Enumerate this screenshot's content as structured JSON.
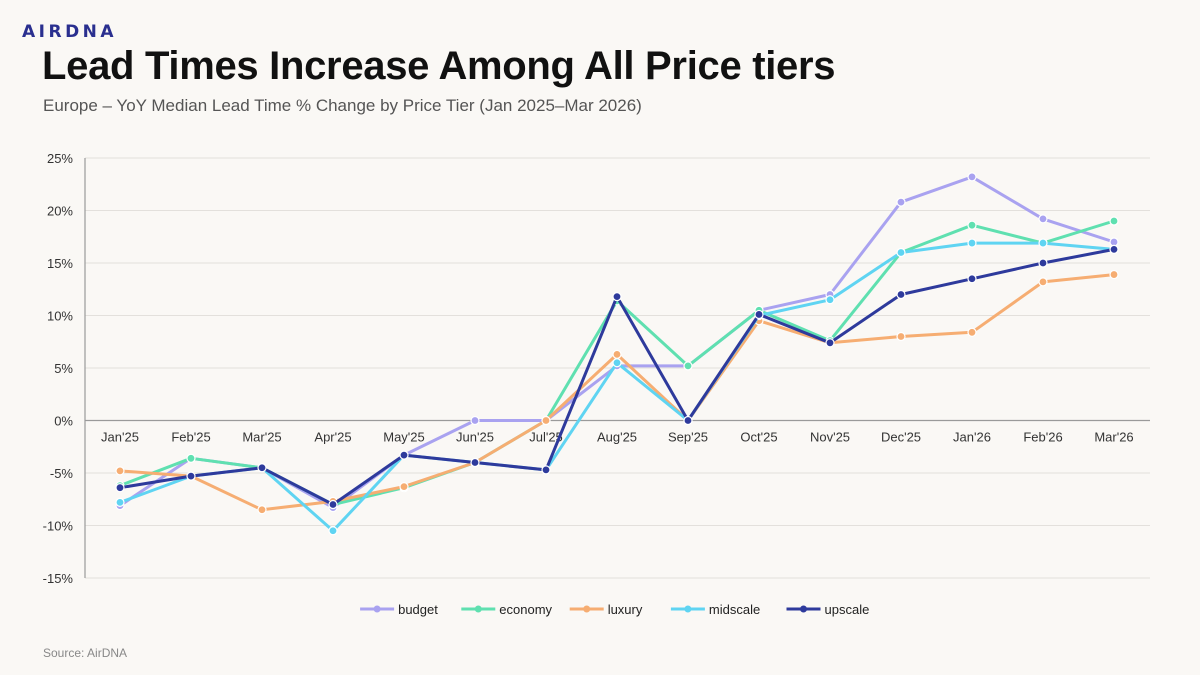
{
  "brand": {
    "logo_text": "AIRDNA",
    "color": "#2a2f8f"
  },
  "header": {
    "title": "Lead Times Increase Among All Price tiers",
    "subtitle": "Europe – YoY Median Lead Time % Change by Price Tier (Jan 2025–Mar 2026)"
  },
  "footer": {
    "source": "Source: AirDNA"
  },
  "chart_data": {
    "type": "line",
    "title": "Lead Times Increase Among All Price tiers",
    "subtitle": "Europe – YoY Median Lead Time % Change by Price Tier (Jan 2025–Mar 2026)",
    "xlabel": "",
    "ylabel": "",
    "categories": [
      "Jan'25",
      "Feb'25",
      "Mar'25",
      "Apr'25",
      "May'25",
      "Jun'25",
      "Jul'25",
      "Aug'25",
      "Sep'25",
      "Oct'25",
      "Nov'25",
      "Dec'25",
      "Jan'26",
      "Feb'26",
      "Mar'26"
    ],
    "ylim": [
      -15,
      25
    ],
    "yticks": [
      -15,
      -10,
      -5,
      0,
      5,
      10,
      15,
      20,
      25
    ],
    "ytick_labels": [
      "-15%",
      "-10%",
      "-5%",
      "0%",
      "5%",
      "10%",
      "15%",
      "20%",
      "25%"
    ],
    "grid": "horizontal",
    "legend_position": "bottom-center",
    "series": [
      {
        "name": "budget",
        "color": "#a9a2f0",
        "values": [
          -8.1,
          -3.6,
          -4.5,
          -8.3,
          -3.3,
          0,
          0,
          5.2,
          5.2,
          10.5,
          12.0,
          20.8,
          23.2,
          19.2,
          17.0
        ]
      },
      {
        "name": "economy",
        "color": "#5fe0b0",
        "values": [
          -6.2,
          -3.6,
          -4.5,
          -8.0,
          -6.4,
          -4.0,
          0,
          11.4,
          5.2,
          10.5,
          7.6,
          16.0,
          18.6,
          16.9,
          19.0
        ]
      },
      {
        "name": "luxury",
        "color": "#f6ad72",
        "values": [
          -4.8,
          -5.3,
          -8.5,
          -7.7,
          -6.3,
          -4.0,
          0,
          6.3,
          0,
          9.5,
          7.4,
          8.0,
          8.4,
          13.2,
          13.9
        ]
      },
      {
        "name": "midscale",
        "color": "#5fd4f2",
        "values": [
          -7.8,
          -5.3,
          -4.5,
          -10.5,
          -3.3,
          -4.0,
          -4.7,
          5.5,
          0,
          10.0,
          11.5,
          16.0,
          16.9,
          16.9,
          16.3
        ]
      },
      {
        "name": "upscale",
        "color": "#2e3a9c",
        "values": [
          -6.4,
          -5.3,
          -4.5,
          -8.0,
          -3.3,
          -4.0,
          -4.7,
          11.8,
          0,
          10.1,
          7.4,
          12.0,
          13.5,
          15.0,
          16.3
        ]
      }
    ]
  }
}
